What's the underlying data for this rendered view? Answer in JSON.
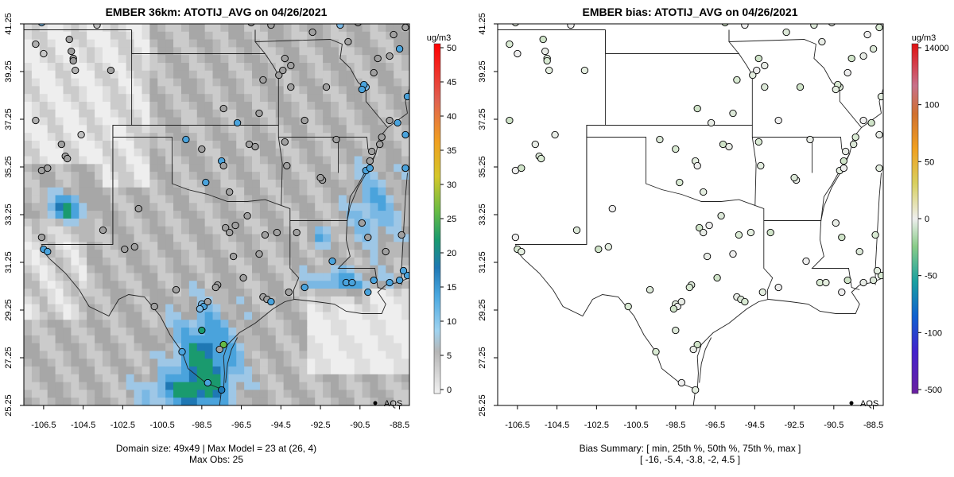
{
  "panels": [
    {
      "title": "EMBER 36km: ATOTIJ_AVG on 04/26/2021",
      "caption_lines": [
        "Domain size: 49x49 | Max Model = 23 at (26, 4)",
        "Max Obs: 25"
      ],
      "legend_unit": "ug/m3",
      "colorbar_ticks": [
        "0",
        "5",
        "10",
        "15",
        "20",
        "25",
        "30",
        "35",
        "40",
        "45",
        "50"
      ],
      "obs_label": "AQS"
    },
    {
      "title": "EMBER bias: ATOTIJ_AVG on 04/26/2021",
      "caption_lines": [
        "Bias Summary: [ min, 25th %, 50th %, 75th %, max ]",
        "[ -16,   -5.4,   -3.8,   -2,   4.5 ]"
      ],
      "legend_unit": "ug/m3",
      "colorbar_ticks": [
        "-500",
        "-100",
        "-50",
        "0",
        "50",
        "100",
        "14000"
      ],
      "obs_label": "AQS"
    }
  ],
  "chart_data": [
    {
      "type": "heatmap",
      "title": "EMBER 36km: ATOTIJ_AVG on 04/26/2021",
      "xlim": [
        -107.5,
        -88
      ],
      "ylim": [
        25.25,
        41.25
      ],
      "x_ticks": [
        "-106.5",
        "-104.5",
        "-102.5",
        "-100.5",
        "-98.5",
        "-96.5",
        "-94.5",
        "-92.5",
        "-90.5",
        "-88.5"
      ],
      "y_ticks": [
        "25.25",
        "27.25",
        "29.25",
        "31.25",
        "33.25",
        "35.25",
        "37.25",
        "39.25",
        "41.25"
      ],
      "legend_unit": "ug/m3",
      "colorbar": [
        0,
        50
      ],
      "domain_size": "49x49",
      "max_model": 23,
      "max_model_at": [
        26,
        4
      ],
      "max_obs": 25,
      "series_label": "AQS"
    },
    {
      "type": "scatter",
      "title": "EMBER bias: ATOTIJ_AVG on 04/26/2021",
      "xlim": [
        -107.5,
        -88
      ],
      "ylim": [
        25.25,
        41.25
      ],
      "x_ticks": [
        "-106.5",
        "-104.5",
        "-102.5",
        "-100.5",
        "-98.5",
        "-96.5",
        "-94.5",
        "-92.5",
        "-90.5",
        "-88.5"
      ],
      "y_ticks": [
        "25.25",
        "27.25",
        "29.25",
        "31.25",
        "33.25",
        "35.25",
        "37.25",
        "39.25",
        "41.25"
      ],
      "legend_unit": "ug/m3",
      "bias_summary": {
        "min": -16,
        "p25": -5.4,
        "p50": -3.8,
        "p75": -2,
        "max": 4.5
      },
      "series_label": "AQS"
    }
  ]
}
